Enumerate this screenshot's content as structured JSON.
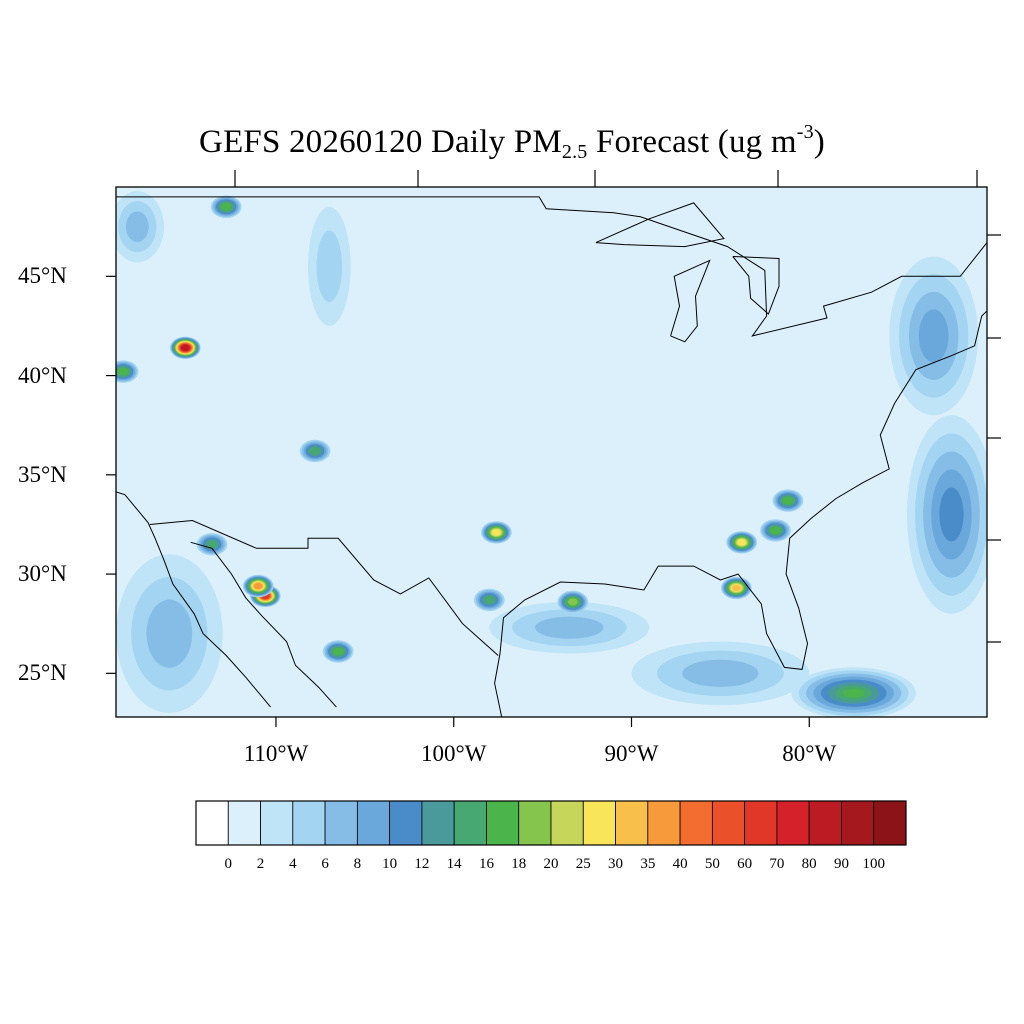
{
  "title": {
    "prefix": "GEFS 20260120 Daily PM",
    "sub": "2.5",
    "middle": " Forecast (ug m",
    "sup": "-3",
    "suffix": ")"
  },
  "map": {
    "extent": {
      "lon_min": -119.0,
      "lon_max": -70.0,
      "lat_min": 22.8,
      "lat_max": 49.5
    },
    "background_color": "#dcf0fb",
    "lat_ticks": [
      {
        "value": 45,
        "label": "45°N"
      },
      {
        "value": 40,
        "label": "40°N"
      },
      {
        "value": 35,
        "label": "35°N"
      },
      {
        "value": 30,
        "label": "30°N"
      },
      {
        "value": 25,
        "label": "25°N"
      }
    ],
    "lon_ticks": [
      {
        "value": -110,
        "label": "110°W"
      },
      {
        "value": -100,
        "label": "100°W"
      },
      {
        "value": -90,
        "label": "90°W"
      },
      {
        "value": -80,
        "label": "80°W"
      }
    ]
  },
  "colorbar": {
    "labels": [
      "0",
      "2",
      "4",
      "6",
      "8",
      "10",
      "12",
      "14",
      "16",
      "18",
      "20",
      "25",
      "30",
      "35",
      "40",
      "50",
      "60",
      "70",
      "80",
      "90",
      "100"
    ],
    "colors": [
      "#ffffff",
      "#dcf0fb",
      "#bfe4f7",
      "#a3d5f2",
      "#85bde6",
      "#6aa8dc",
      "#4a8cc9",
      "#4a9a9b",
      "#48a872",
      "#4bb44a",
      "#86c54d",
      "#c5d65a",
      "#f8e55a",
      "#f8bf4a",
      "#f79a3b",
      "#f46d30",
      "#ea512b",
      "#e03728",
      "#d52129",
      "#bb1c23",
      "#a4181e",
      "#8c1418"
    ]
  },
  "pm_hotspots": [
    {
      "lon": -115.1,
      "lat": 41.4,
      "value": 80
    },
    {
      "lon": -110.6,
      "lat": 28.9,
      "value": 60
    },
    {
      "lon": -111.0,
      "lat": 29.4,
      "value": 35
    },
    {
      "lon": -97.6,
      "lat": 32.1,
      "value": 25
    },
    {
      "lon": -83.8,
      "lat": 31.6,
      "value": 25
    },
    {
      "lon": -84.1,
      "lat": 29.3,
      "value": 30
    },
    {
      "lon": -93.3,
      "lat": 28.6,
      "value": 18
    },
    {
      "lon": -106.5,
      "lat": 26.1,
      "value": 16
    },
    {
      "lon": -118.6,
      "lat": 40.2,
      "value": 16
    },
    {
      "lon": -81.9,
      "lat": 32.2,
      "value": 16
    },
    {
      "lon": -107.8,
      "lat": 36.2,
      "value": 14
    },
    {
      "lon": -113.6,
      "lat": 31.5,
      "value": 14
    },
    {
      "lon": -98.0,
      "lat": 28.7,
      "value": 14
    },
    {
      "lon": -112.8,
      "lat": 48.5,
      "value": 16
    },
    {
      "lon": -81.2,
      "lat": 33.7,
      "value": 16
    }
  ],
  "pm_regions": [
    {
      "lon": -77.5,
      "lat": 24.0,
      "rlon": 3.5,
      "rlat": 1.3,
      "value": 16
    },
    {
      "lon": -72.0,
      "lat": 33.0,
      "rlon": 2.5,
      "rlat": 5.0,
      "value": 10
    },
    {
      "lon": -73.0,
      "lat": 42.0,
      "rlon": 2.5,
      "rlat": 4.0,
      "value": 8
    },
    {
      "lon": -116.0,
      "lat": 27.0,
      "rlon": 3.0,
      "rlat": 4.0,
      "value": 6
    },
    {
      "lon": -85.0,
      "lat": 25.0,
      "rlon": 5.0,
      "rlat": 1.6,
      "value": 6
    },
    {
      "lon": -93.5,
      "lat": 27.3,
      "rlon": 4.5,
      "rlat": 1.3,
      "value": 6
    },
    {
      "lon": -107.0,
      "lat": 45.5,
      "rlon": 1.2,
      "rlat": 3.0,
      "value": 4
    },
    {
      "lon": -117.8,
      "lat": 47.5,
      "rlon": 1.5,
      "rlat": 1.8,
      "value": 6
    }
  ]
}
